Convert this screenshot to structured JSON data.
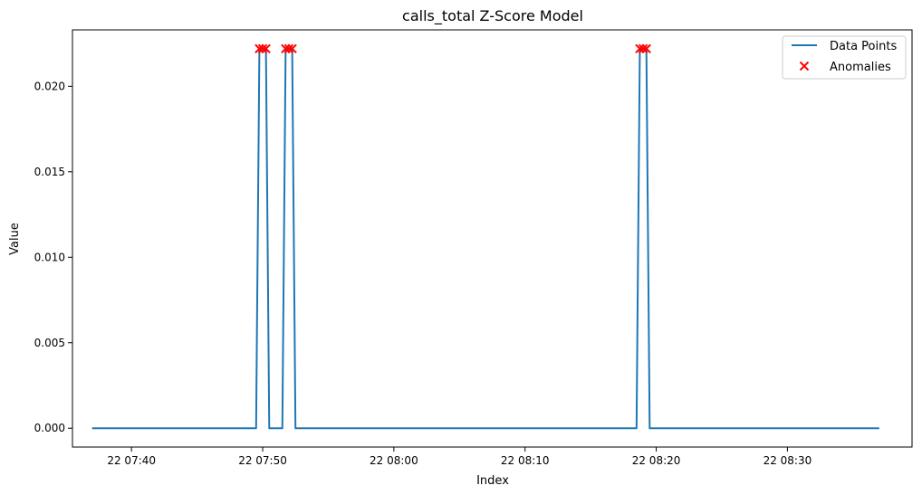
{
  "chart_data": {
    "type": "line",
    "title": "calls_total Z-Score Model",
    "xlabel": "Index",
    "ylabel": "Value",
    "x_ticks": [
      "22 07:40",
      "22 07:50",
      "22 08:00",
      "22 08:10",
      "22 08:20",
      "22 08:30"
    ],
    "x_tick_minutes": [
      -50,
      -40,
      -30,
      -20,
      -10,
      0
    ],
    "y_ticks": [
      "0.000",
      "0.005",
      "0.010",
      "0.015",
      "0.020"
    ],
    "y_tick_values": [
      0,
      0.005,
      0.01,
      0.015,
      0.02
    ],
    "xlim": [
      "07:35:30",
      "08:39:30"
    ],
    "ylim": [
      -0.0011,
      0.0233
    ],
    "grid": false,
    "legend": {
      "position": "top-right",
      "entries": [
        {
          "label": "Data Points",
          "kind": "line",
          "color": "#1f77b4"
        },
        {
          "label": "Anomalies",
          "kind": "x-marker",
          "color": "#ff0000"
        }
      ]
    },
    "series": [
      {
        "name": "Data Points",
        "color": "#1f77b4",
        "points": [
          {
            "t": "07:37",
            "v": 0
          },
          {
            "t": "07:49:30",
            "v": 0
          },
          {
            "t": "07:49:45",
            "v": 0.0222
          },
          {
            "t": "07:50",
            "v": 0.0222
          },
          {
            "t": "07:50:15",
            "v": 0.0222
          },
          {
            "t": "07:50:30",
            "v": 0
          },
          {
            "t": "07:51:30",
            "v": 0
          },
          {
            "t": "07:51:45",
            "v": 0.0222
          },
          {
            "t": "07:52",
            "v": 0.0222
          },
          {
            "t": "07:52:15",
            "v": 0.0222
          },
          {
            "t": "07:52:30",
            "v": 0
          },
          {
            "t": "08:18:30",
            "v": 0
          },
          {
            "t": "08:18:45",
            "v": 0.0222
          },
          {
            "t": "08:19",
            "v": 0.0222
          },
          {
            "t": "08:19:15",
            "v": 0.0222
          },
          {
            "t": "08:19:30",
            "v": 0
          },
          {
            "t": "08:37",
            "v": 0
          }
        ]
      }
    ],
    "anomalies": {
      "name": "Anomalies",
      "color": "#ff0000",
      "points": [
        {
          "t": "07:49:45",
          "v": 0.0222
        },
        {
          "t": "07:50",
          "v": 0.0222
        },
        {
          "t": "07:50:15",
          "v": 0.0222
        },
        {
          "t": "07:51:45",
          "v": 0.0222
        },
        {
          "t": "07:52",
          "v": 0.0222
        },
        {
          "t": "07:52:15",
          "v": 0.0222
        },
        {
          "t": "08:18:45",
          "v": 0.0222
        },
        {
          "t": "08:19",
          "v": 0.0222
        },
        {
          "t": "08:19:15",
          "v": 0.0222
        }
      ]
    }
  }
}
